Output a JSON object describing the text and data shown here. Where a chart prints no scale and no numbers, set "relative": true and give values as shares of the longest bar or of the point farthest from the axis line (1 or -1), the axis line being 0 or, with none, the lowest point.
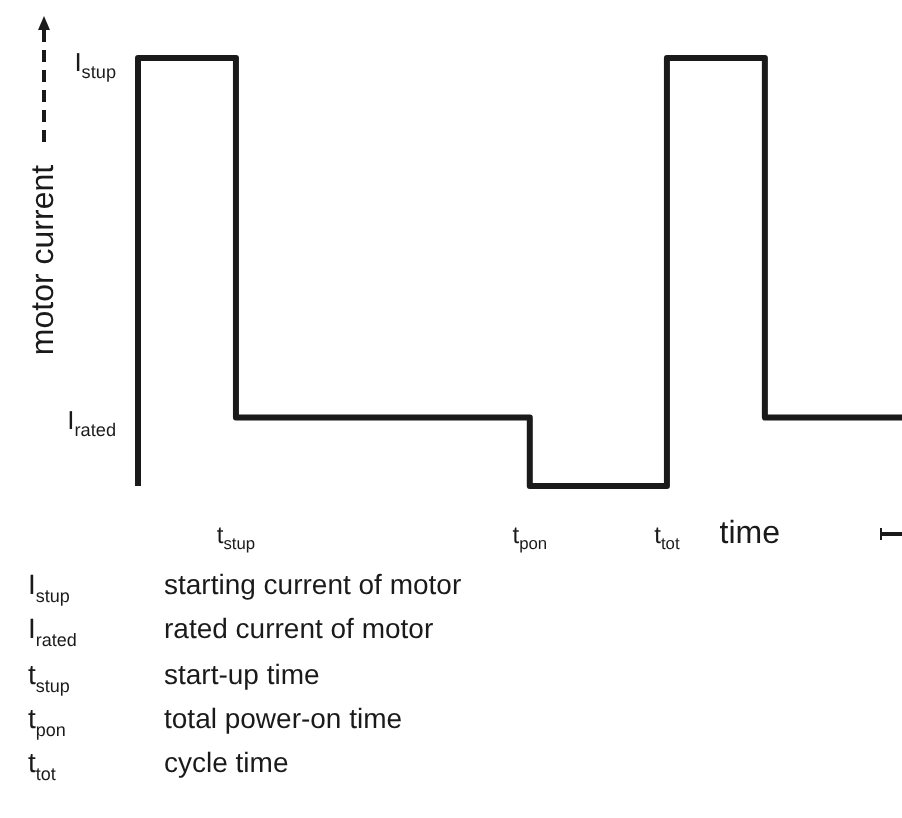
{
  "chart_data": {
    "type": "step",
    "relative": true,
    "xlabel": "time",
    "ylabel": "motor current",
    "categories": [
      null,
      null,
      null,
      null,
      null,
      "t$_{stup}$",
      null,
      null,
      null,
      null,
      null,
      null,
      null,
      null,
      null,
      null,
      null,
      null,
      null,
      null,
      "t$_{pon}$",
      null,
      null,
      null,
      null,
      null,
      null,
      "t$_{tot}$",
      null,
      null,
      null,
      null,
      null,
      null,
      null,
      null,
      null,
      null,
      null,
      null
    ],
    "series": [
      {
        "color": "#1a1a1a",
        "values": [
          0,
          1,
          1,
          1,
          1,
          1,
          0.16,
          0.16,
          0.16,
          0.16,
          0.16,
          0.16,
          0.16,
          0.16,
          0.16,
          0.16,
          0.16,
          0.16,
          0.16,
          0.16,
          0.16,
          0,
          0,
          0,
          0,
          0,
          0,
          0,
          1,
          1,
          1,
          1,
          1,
          0.16,
          0.16,
          0.16,
          0.16,
          0.16,
          0.16,
          0.16
        ]
      }
    ],
    "marker": "none",
    "line_style": "solid",
    "grid": false,
    "legend": false,
    "annotations": [
      "I$_{stup}$",
      "I$_{rated}$",
      "I$_{stup}$ starting current of motor",
      "I$_{rated}$ rated current of motor",
      "t$_{stup}$ start-up time",
      "t$_{pon}$ total power-on time",
      "t$_{tot}$ cycle time"
    ]
  }
}
